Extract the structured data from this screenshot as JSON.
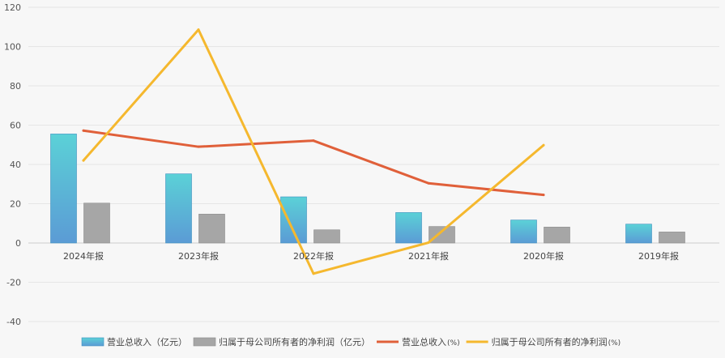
{
  "chart_data": {
    "type": "bar",
    "categories": [
      "2024年报",
      "2023年报",
      "2022年报",
      "2021年报",
      "2020年报",
      "2019年报"
    ],
    "yticks": [
      "120",
      "100",
      "80",
      "60",
      "40",
      "20",
      "0",
      "-20",
      "-40"
    ],
    "ylim": [
      -40,
      120
    ],
    "grid": true,
    "legend_position": "bottom",
    "series": [
      {
        "name": "营业总收入（亿元）",
        "type": "bar",
        "values": [
          55.5,
          35.2,
          23.5,
          15.5,
          11.7,
          9.6
        ],
        "color": "#5bd1d7",
        "color_bottom": "#5b9bd5"
      },
      {
        "name": "归属于母公司所有者的净利润（亿元）",
        "type": "bar",
        "values": [
          20.3,
          14.7,
          6.7,
          8.4,
          8.1,
          5.6
        ],
        "color": "#a6a6a6"
      },
      {
        "name": "营业总收入",
        "unit": "(%)",
        "type": "line",
        "values": [
          57.2,
          49.0,
          52.1,
          30.4,
          24.5,
          null
        ],
        "color": "#e0603a"
      },
      {
        "name": "归属于母公司所有者的净利润",
        "unit": "(%)",
        "type": "line",
        "values": [
          42.0,
          108.6,
          -15.6,
          0.2,
          49.8,
          null
        ],
        "color": "#f5b82e"
      }
    ]
  }
}
